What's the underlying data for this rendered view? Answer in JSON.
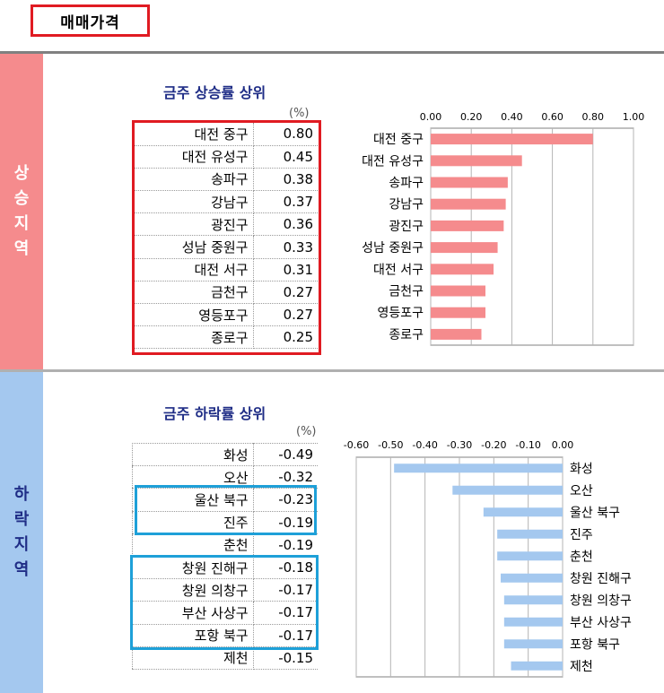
{
  "header": {
    "title": "매매가격"
  },
  "rising": {
    "side_label": "상승지역",
    "title": "금주 상승률 상위",
    "unit": "(%)",
    "rows": [
      {
        "name": "대전 중구",
        "value": "0.80"
      },
      {
        "name": "대전 유성구",
        "value": "0.45"
      },
      {
        "name": "송파구",
        "value": "0.38"
      },
      {
        "name": "강남구",
        "value": "0.37"
      },
      {
        "name": "광진구",
        "value": "0.36"
      },
      {
        "name": "성남 중원구",
        "value": "0.33"
      },
      {
        "name": "대전 서구",
        "value": "0.31"
      },
      {
        "name": "금천구",
        "value": "0.27"
      },
      {
        "name": "영등포구",
        "value": "0.27"
      },
      {
        "name": "종로구",
        "value": "0.25"
      }
    ]
  },
  "falling": {
    "side_label": "하락지역",
    "title": "금주 하락률 상위",
    "unit": "(%)",
    "rows": [
      {
        "name": "화성",
        "value": "-0.49"
      },
      {
        "name": "오산",
        "value": "-0.32"
      },
      {
        "name": "울산 북구",
        "value": "-0.23"
      },
      {
        "name": "진주",
        "value": "-0.19"
      },
      {
        "name": "춘천",
        "value": "-0.19"
      },
      {
        "name": "창원 진해구",
        "value": "-0.18"
      },
      {
        "name": "창원 의창구",
        "value": "-0.17"
      },
      {
        "name": "부산 사상구",
        "value": "-0.17"
      },
      {
        "name": "포항 북구",
        "value": "-0.17"
      },
      {
        "name": "제천",
        "value": "-0.15"
      }
    ]
  },
  "chart_data": [
    {
      "type": "bar",
      "orientation": "horizontal",
      "color": "#f58b8d",
      "categories": [
        "대전 중구",
        "대전 유성구",
        "송파구",
        "강남구",
        "광진구",
        "성남 중원구",
        "대전 서구",
        "금천구",
        "영등포구",
        "종로구"
      ],
      "values": [
        0.8,
        0.45,
        0.38,
        0.37,
        0.36,
        0.33,
        0.31,
        0.27,
        0.27,
        0.25
      ],
      "xlim": [
        0,
        1.0
      ],
      "ticks": [
        "0.00",
        "0.20",
        "0.40",
        "0.60",
        "0.80",
        "1.00"
      ],
      "tick_values": [
        0,
        0.2,
        0.4,
        0.6,
        0.8,
        1.0
      ],
      "axis_position": "top",
      "grid": true
    },
    {
      "type": "bar",
      "orientation": "horizontal",
      "color": "#a4c8ef",
      "categories": [
        "화성",
        "오산",
        "울산 북구",
        "진주",
        "춘천",
        "창원 진해구",
        "창원 의창구",
        "부산 사상구",
        "포항 북구",
        "제천"
      ],
      "values": [
        -0.49,
        -0.32,
        -0.23,
        -0.19,
        -0.19,
        -0.18,
        -0.17,
        -0.17,
        -0.17,
        -0.15
      ],
      "xlim": [
        -0.6,
        0
      ],
      "ticks": [
        "-0.60",
        "-0.50",
        "-0.40",
        "-0.30",
        "-0.20",
        "-0.10",
        "0.00"
      ],
      "tick_values": [
        -0.6,
        -0.5,
        -0.4,
        -0.3,
        -0.2,
        -0.1,
        0
      ],
      "axis_position": "top",
      "grid": true
    }
  ]
}
